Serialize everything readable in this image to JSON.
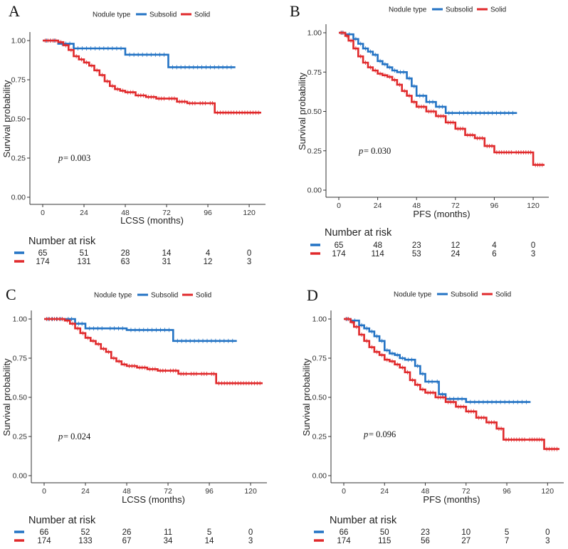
{
  "legend_title": "Nodule type",
  "group_labels": [
    "Subsolid",
    "Solid"
  ],
  "colors": {
    "subsolid": "#2373c4",
    "solid": "#e0292b"
  },
  "risk_table_title": "Number at risk",
  "chart_data": [
    {
      "panel": "A",
      "type": "line",
      "subtype": "kaplan-meier",
      "xlabel": "LCSS (months)",
      "ylabel": "Survival probability",
      "xticks": [
        0,
        24,
        48,
        72,
        96,
        120
      ],
      "yticks": [
        0.0,
        0.25,
        0.5,
        0.75,
        1.0
      ],
      "ytick_labels": [
        "0.00",
        "0.25",
        "0.50",
        "0.75",
        "1.00"
      ],
      "xlim": [
        0,
        127
      ],
      "ylim": [
        0,
        1
      ],
      "pvalue_label": "p",
      "pvalue_text": " = 0.003",
      "series": [
        {
          "name": "Subsolid",
          "x": [
            0,
            9,
            18,
            48,
            73,
            112
          ],
          "y": [
            1.0,
            0.98,
            0.95,
            0.91,
            0.83,
            0.83
          ]
        },
        {
          "name": "Solid",
          "x": [
            0,
            9,
            12,
            15,
            18,
            21,
            24,
            27,
            30,
            33,
            36,
            39,
            42,
            45,
            48,
            54,
            60,
            66,
            72,
            78,
            84,
            90,
            96,
            100,
            127
          ],
          "y": [
            1.0,
            0.99,
            0.97,
            0.94,
            0.9,
            0.88,
            0.86,
            0.84,
            0.81,
            0.78,
            0.74,
            0.71,
            0.69,
            0.68,
            0.67,
            0.65,
            0.64,
            0.63,
            0.63,
            0.61,
            0.6,
            0.6,
            0.6,
            0.54,
            0.54
          ]
        }
      ],
      "risk_table": {
        "counts": [
          [
            65,
            51,
            28,
            14,
            4,
            0
          ],
          [
            174,
            131,
            63,
            31,
            12,
            3
          ]
        ]
      }
    },
    {
      "panel": "B",
      "type": "line",
      "subtype": "kaplan-meier",
      "xlabel": "PFS (months)",
      "ylabel": "Survival probability",
      "xticks": [
        0,
        24,
        48,
        72,
        96,
        120
      ],
      "yticks": [
        0.0,
        0.25,
        0.5,
        0.75,
        1.0
      ],
      "ytick_labels": [
        "0.00",
        "0.25",
        "0.50",
        "0.75",
        "1.00"
      ],
      "xlim": [
        0,
        127
      ],
      "ylim": [
        0,
        1
      ],
      "pvalue_label": "p",
      "pvalue_text": " = 0.030",
      "series": [
        {
          "name": "Subsolid",
          "x": [
            0,
            4,
            9,
            12,
            15,
            18,
            21,
            24,
            27,
            30,
            33,
            36,
            42,
            45,
            48,
            54,
            60,
            66,
            72,
            110
          ],
          "y": [
            1.0,
            0.99,
            0.96,
            0.93,
            0.9,
            0.88,
            0.86,
            0.82,
            0.8,
            0.78,
            0.76,
            0.75,
            0.71,
            0.66,
            0.6,
            0.56,
            0.53,
            0.49,
            0.49,
            0.49
          ]
        },
        {
          "name": "Solid",
          "x": [
            0,
            4,
            6,
            9,
            12,
            15,
            18,
            21,
            24,
            27,
            30,
            33,
            36,
            39,
            42,
            45,
            48,
            54,
            60,
            66,
            72,
            78,
            84,
            90,
            96,
            108,
            120,
            127
          ],
          "y": [
            1.0,
            0.98,
            0.95,
            0.9,
            0.85,
            0.81,
            0.78,
            0.76,
            0.74,
            0.73,
            0.72,
            0.7,
            0.67,
            0.63,
            0.6,
            0.56,
            0.53,
            0.5,
            0.47,
            0.43,
            0.39,
            0.35,
            0.33,
            0.28,
            0.24,
            0.24,
            0.16,
            0.16
          ]
        }
      ],
      "risk_table": {
        "counts": [
          [
            65,
            48,
            23,
            12,
            4,
            0
          ],
          [
            174,
            114,
            53,
            24,
            6,
            3
          ]
        ]
      }
    },
    {
      "panel": "C",
      "type": "line",
      "subtype": "kaplan-meier",
      "xlabel": "LCSS (months)",
      "ylabel": "Survival probability",
      "xticks": [
        0,
        24,
        48,
        72,
        96,
        120
      ],
      "yticks": [
        0.0,
        0.25,
        0.5,
        0.75,
        1.0
      ],
      "ytick_labels": [
        "0.00",
        "0.25",
        "0.50",
        "0.75",
        "1.00"
      ],
      "xlim": [
        0,
        127
      ],
      "ylim": [
        0,
        1
      ],
      "pvalue_label": "p",
      "pvalue_text": " = 0.024",
      "series": [
        {
          "name": "Subsolid",
          "x": [
            0,
            12,
            18,
            24,
            36,
            48,
            75,
            112
          ],
          "y": [
            1.0,
            1.0,
            0.97,
            0.94,
            0.94,
            0.93,
            0.86,
            0.86
          ]
        },
        {
          "name": "Solid",
          "x": [
            0,
            12,
            15,
            18,
            21,
            24,
            27,
            30,
            33,
            36,
            39,
            42,
            45,
            48,
            54,
            60,
            66,
            72,
            78,
            84,
            90,
            96,
            100,
            127
          ],
          "y": [
            1.0,
            0.99,
            0.97,
            0.94,
            0.91,
            0.88,
            0.86,
            0.84,
            0.81,
            0.79,
            0.75,
            0.73,
            0.71,
            0.7,
            0.69,
            0.68,
            0.67,
            0.67,
            0.65,
            0.65,
            0.65,
            0.65,
            0.59,
            0.59
          ]
        }
      ],
      "risk_table": {
        "counts": [
          [
            66,
            52,
            26,
            11,
            5,
            0
          ],
          [
            174,
            133,
            67,
            34,
            14,
            3
          ]
        ]
      }
    },
    {
      "panel": "D",
      "type": "line",
      "subtype": "kaplan-meier",
      "xlabel": "PFS (months)",
      "ylabel": "Survival probability",
      "xticks": [
        0,
        24,
        48,
        72,
        96,
        120
      ],
      "yticks": [
        0.0,
        0.25,
        0.5,
        0.75,
        1.0
      ],
      "ytick_labels": [
        "0.00",
        "0.25",
        "0.50",
        "0.75",
        "1.00"
      ],
      "xlim": [
        0,
        127
      ],
      "ylim": [
        0,
        1
      ],
      "pvalue_label": "p",
      "pvalue_text": " = 0.096",
      "series": [
        {
          "name": "Subsolid",
          "x": [
            0,
            4,
            9,
            12,
            15,
            18,
            21,
            24,
            27,
            30,
            33,
            36,
            42,
            45,
            48,
            54,
            56,
            60,
            72,
            110
          ],
          "y": [
            1.0,
            0.99,
            0.96,
            0.94,
            0.92,
            0.89,
            0.86,
            0.8,
            0.78,
            0.77,
            0.75,
            0.74,
            0.7,
            0.65,
            0.6,
            0.6,
            0.52,
            0.49,
            0.47,
            0.47
          ]
        },
        {
          "name": "Solid",
          "x": [
            0,
            4,
            6,
            9,
            12,
            15,
            18,
            21,
            24,
            27,
            30,
            33,
            36,
            39,
            42,
            45,
            48,
            54,
            60,
            66,
            72,
            78,
            84,
            90,
            94,
            108,
            118,
            127
          ],
          "y": [
            1.0,
            0.98,
            0.95,
            0.9,
            0.86,
            0.82,
            0.79,
            0.77,
            0.74,
            0.73,
            0.71,
            0.69,
            0.66,
            0.61,
            0.58,
            0.55,
            0.53,
            0.5,
            0.47,
            0.44,
            0.41,
            0.37,
            0.34,
            0.3,
            0.23,
            0.23,
            0.17,
            0.17
          ]
        }
      ],
      "risk_table": {
        "counts": [
          [
            66,
            50,
            23,
            10,
            5,
            0
          ],
          [
            174,
            115,
            56,
            27,
            7,
            3
          ]
        ]
      }
    }
  ]
}
